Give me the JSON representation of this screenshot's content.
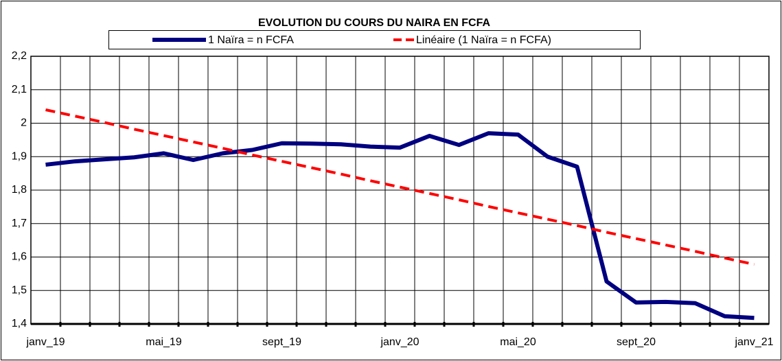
{
  "chart_data": {
    "type": "line",
    "title": "EVOLUTION DU COURS DU NAIRA EN FCFA",
    "categories": [
      "janv_19",
      null,
      null,
      null,
      "mai_19",
      null,
      null,
      null,
      "sept_19",
      null,
      null,
      null,
      "janv_20",
      null,
      null,
      null,
      "mai_20",
      null,
      null,
      null,
      "sept_20",
      null,
      null,
      null,
      "janv_21"
    ],
    "series": [
      {
        "name": "1 Naïra = n FCFA",
        "color": "#000080",
        "style": "solid",
        "values": [
          1.876,
          1.886,
          1.892,
          1.898,
          1.91,
          1.89,
          1.91,
          1.92,
          1.94,
          1.939,
          1.937,
          1.93,
          1.927,
          1.962,
          1.935,
          1.97,
          1.966,
          1.9,
          1.87,
          1.527,
          1.464,
          1.466,
          1.462,
          1.423,
          1.418
        ]
      },
      {
        "name": "Linéaire (1 Naïra = n FCFA)",
        "color": "#ff0000",
        "style": "dashed",
        "values": [
          2.04,
          2.021,
          2.002,
          1.982,
          1.963,
          1.944,
          1.925,
          1.905,
          1.886,
          1.867,
          1.848,
          1.828,
          1.809,
          1.79,
          1.771,
          1.751,
          1.732,
          1.713,
          1.694,
          1.674,
          1.655,
          1.636,
          1.617,
          1.597,
          1.578
        ]
      }
    ],
    "ylim": [
      1.4,
      2.2
    ],
    "yticks": [
      {
        "value": 1.4,
        "label": "1,4"
      },
      {
        "value": 1.5,
        "label": "1,5"
      },
      {
        "value": 1.6,
        "label": "1,6"
      },
      {
        "value": 1.7,
        "label": "1,7"
      },
      {
        "value": 1.8,
        "label": "1,8"
      },
      {
        "value": 1.9,
        "label": "1,9"
      },
      2,
      {
        "value": 2.1,
        "label": "2,1"
      },
      {
        "value": 2.2,
        "label": "2,2"
      }
    ],
    "grid": true
  }
}
